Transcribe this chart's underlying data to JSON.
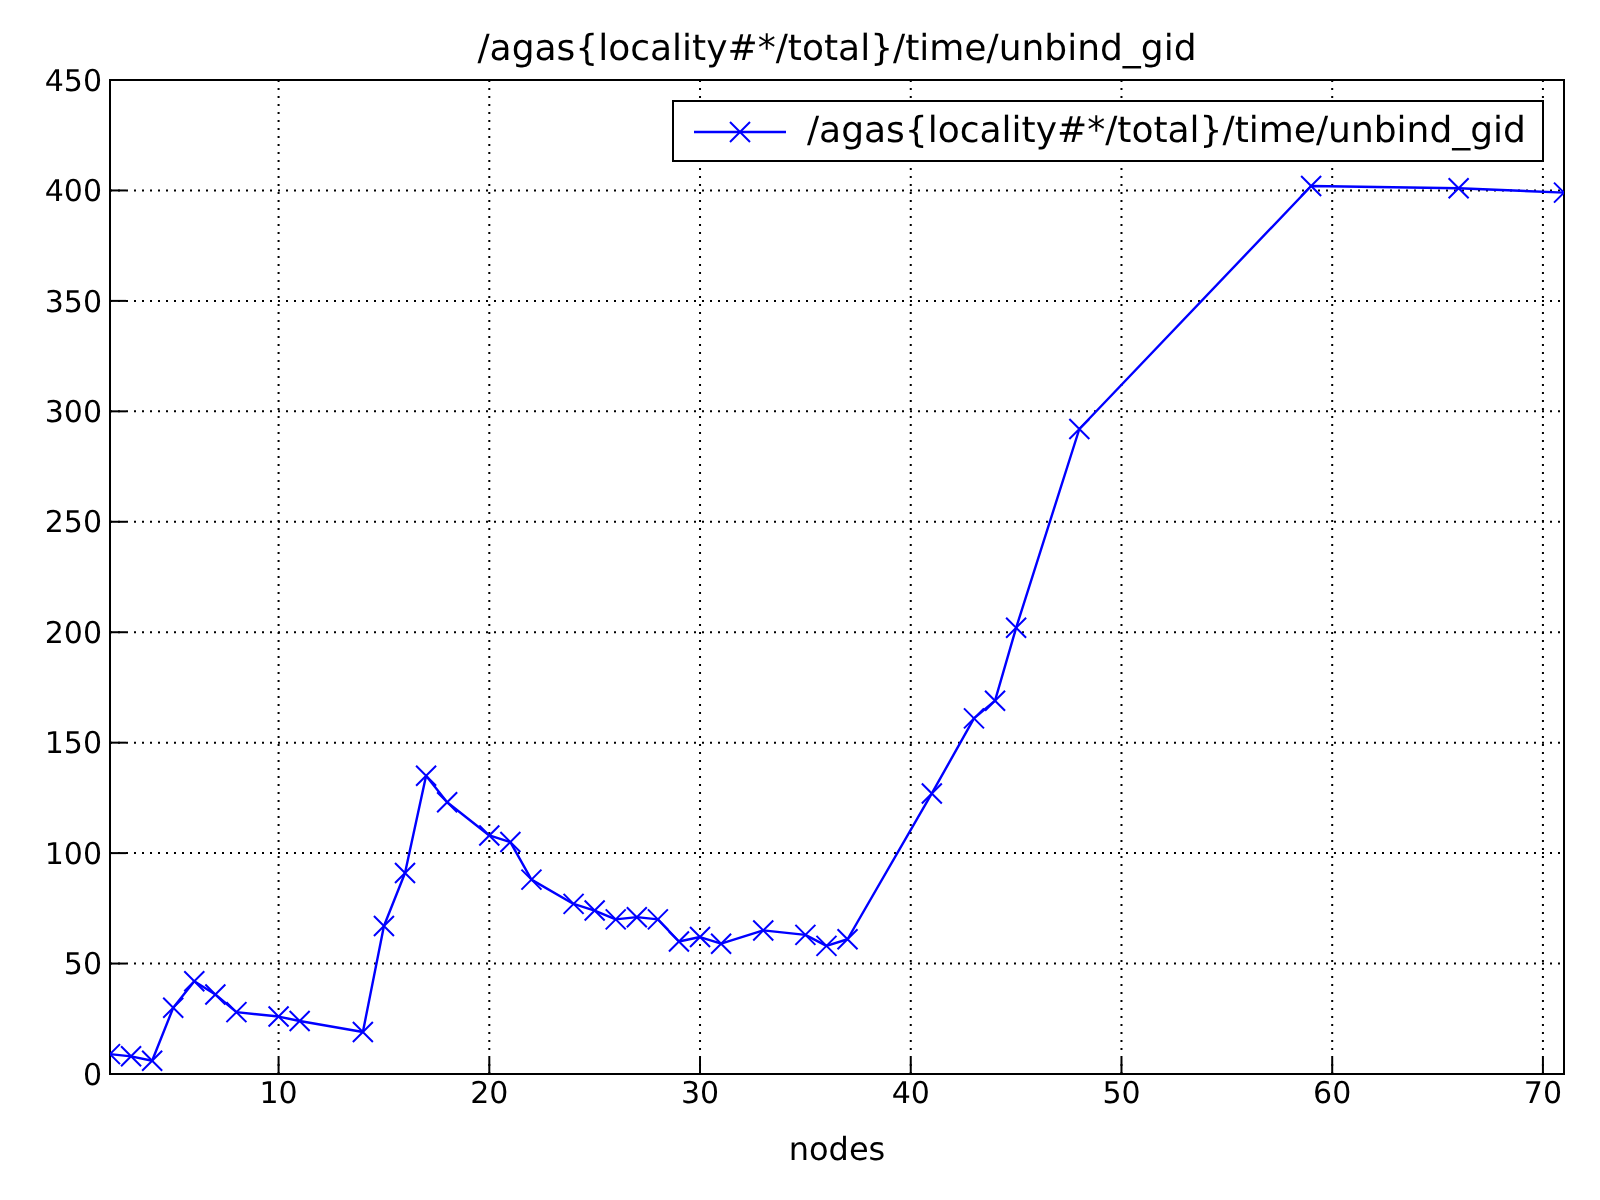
{
  "chart_data": {
    "type": "line",
    "title": "/agas{locality#*/total}/time/unbind_gid",
    "xlabel": "nodes",
    "x": [
      2,
      3,
      4,
      5,
      6,
      7,
      8,
      10,
      11,
      14,
      15,
      16,
      17,
      18,
      20,
      21,
      22,
      24,
      25,
      26,
      27,
      28,
      29,
      30,
      31,
      33,
      35,
      36,
      37,
      41,
      43,
      44,
      45,
      48,
      59,
      66,
      71
    ],
    "series": [
      {
        "name": "/agas{locality#*/total}/time/unbind_gid",
        "color": "#0000ff",
        "values": [
          9,
          8,
          6,
          30,
          42,
          36,
          28,
          26,
          24,
          19,
          67,
          91,
          135,
          123,
          108,
          105,
          88,
          77,
          74,
          70,
          71,
          70,
          60,
          62,
          59,
          65,
          63,
          58,
          61,
          127,
          161,
          169,
          202,
          292,
          402,
          401,
          399
        ]
      }
    ],
    "xlim": [
      2,
      71
    ],
    "xticks": [
      10,
      20,
      30,
      40,
      50,
      60,
      70
    ],
    "ylim": [
      0,
      450
    ],
    "yticks": [
      0,
      50,
      100,
      150,
      200,
      250,
      300,
      350,
      400,
      450
    ],
    "grid": true,
    "legend": "top right",
    "marker": "cross",
    "line_style": "solid"
  }
}
